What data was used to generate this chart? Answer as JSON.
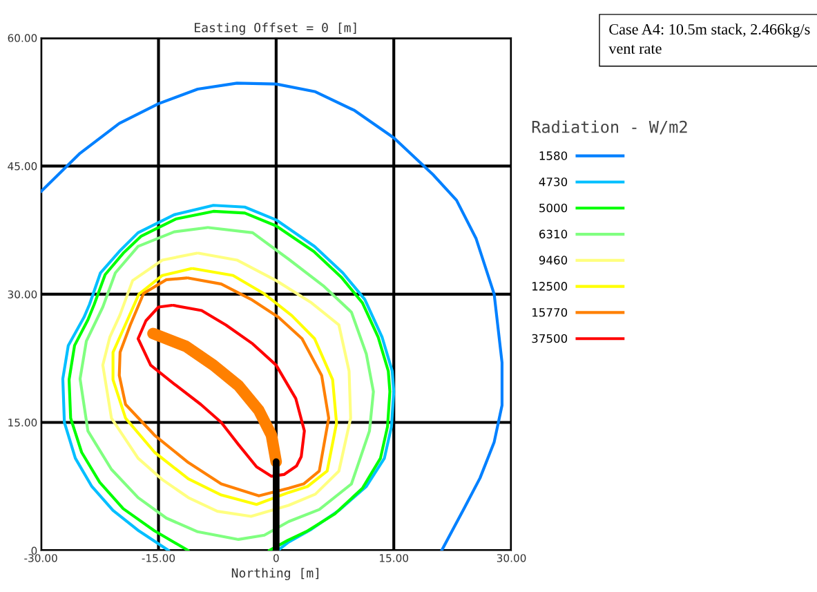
{
  "chart_data": {
    "type": "line",
    "title": "Easting Offset = 0 [m]",
    "xlabel": "Northing [m]",
    "legend_title": "Radiation - W/m2",
    "annotations": [
      "Case A4: 10.5m stack, 2.466kg/s vent rate"
    ],
    "xlim": [
      -30,
      30
    ],
    "ylim": [
      0,
      60
    ],
    "xticks": [
      {
        "value": -30,
        "label": "-30.00"
      },
      {
        "value": -15,
        "label": "-15.00"
      },
      0,
      {
        "value": 15,
        "label": "15.00"
      },
      {
        "value": 30,
        "label": "30.00"
      }
    ],
    "yticks": [
      0,
      {
        "value": 15,
        "label": "15.00"
      },
      {
        "value": 30,
        "label": "30.00"
      },
      {
        "value": 45,
        "label": "45.00"
      },
      {
        "value": 60,
        "label": "60.00"
      }
    ],
    "grid": true,
    "legend": "right",
    "marker": "none",
    "line_style": "solid",
    "series": [
      {
        "name": "1580",
        "color": "#0080ff",
        "x": [
          -30,
          -25,
          -20,
          -15,
          -10,
          -5,
          0,
          5,
          10,
          15,
          20,
          23,
          25.5,
          27.8,
          28.8,
          28.8,
          27.8,
          26,
          24,
          21.1
        ],
        "values": [
          42.0,
          46.5,
          50,
          52.3,
          54,
          54.7,
          54.6,
          53.7,
          51.5,
          48.3,
          44,
          41,
          36.5,
          30,
          22,
          17,
          12.7,
          8.5,
          5,
          0
        ]
      },
      {
        "name": "4730",
        "color": "#00bfff",
        "x": [
          -13.7,
          -17.5,
          -20.8,
          -23.5,
          -25.6,
          -27,
          -27.2,
          -26.5,
          -24.5,
          -23.8,
          -22.4,
          -20,
          -17.6,
          -13,
          -8,
          -4,
          0,
          4.9,
          8.5,
          11.3,
          13.5,
          14.8,
          15,
          14.7,
          13.8,
          11.5,
          8,
          4.5,
          1.6,
          0.2
        ],
        "values": [
          0,
          2.3,
          4.7,
          7.5,
          10.8,
          15,
          20.1,
          24,
          27.3,
          28.8,
          32.5,
          35,
          37.2,
          39.3,
          40.4,
          40.2,
          38.7,
          35.6,
          32.5,
          29.4,
          25,
          21,
          18.6,
          14.5,
          10.8,
          7.5,
          4.7,
          2.5,
          1,
          0
        ]
      },
      {
        "name": "5000",
        "color": "#00ff00",
        "x": [
          -11.2,
          -15.5,
          -19.5,
          -22.5,
          -24.8,
          -26.2,
          -26.4,
          -25.7,
          -24,
          -23.2,
          -21.8,
          -19.5,
          -17.2,
          -12.8,
          -8,
          -4,
          0,
          4.8,
          8.3,
          11,
          13,
          14.3,
          14.5,
          14.2,
          13.3,
          11,
          7.5,
          4,
          1.5,
          -0.9
        ],
        "values": [
          0,
          2.3,
          4.9,
          8,
          11.5,
          15.5,
          20,
          24,
          27,
          28.8,
          32.3,
          34.8,
          36.8,
          38.8,
          39.7,
          39.5,
          38,
          35,
          32,
          29,
          25,
          21,
          18.6,
          14.5,
          10.8,
          7.3,
          4.3,
          2.3,
          1.2,
          0
        ]
      },
      {
        "name": "6310",
        "color": "#80ff80",
        "x": [
          -8.6,
          -3,
          1.6,
          6,
          9.6,
          11.5,
          12.4,
          11.9,
          9.6,
          5.5,
          1.6,
          -1.5,
          -4.8,
          -10,
          -14,
          -17.6,
          -21,
          -24,
          -25,
          -24.2,
          -22.1,
          -20.5,
          -17.6,
          -13,
          -8.8
        ],
        "values": [
          37.8,
          37.2,
          34.1,
          31,
          27.9,
          23,
          18.6,
          14,
          7.8,
          4.8,
          3.4,
          1.8,
          1.3,
          2.2,
          3.8,
          6.2,
          9.5,
          14,
          20.1,
          24.5,
          28.5,
          32.5,
          35.6,
          37.3,
          37.8
        ]
      },
      {
        "name": "9460",
        "color": "#ffff80",
        "x": [
          -9.9,
          -5,
          0,
          4.5,
          8,
          9.3,
          9.5,
          8,
          5,
          1.6,
          -3.2,
          -7.5,
          -11.2,
          -14.5,
          -17.6,
          -21,
          -22.1,
          -21.2,
          -19.9,
          -18.3,
          -14.5,
          -10.1
        ],
        "values": [
          34.8,
          34,
          31.6,
          29,
          26.4,
          21,
          15.5,
          9.3,
          6.6,
          5.3,
          4.0,
          4.6,
          6.2,
          8.3,
          10.8,
          15.5,
          21.7,
          25,
          27.6,
          31.6,
          34,
          34.8
        ]
      },
      {
        "name": "12500",
        "color": "#ffff00",
        "x": [
          -10.6,
          -5.5,
          -1.6,
          2,
          4.9,
          7.2,
          7.7,
          6.5,
          4,
          1.6,
          -2.5,
          -7,
          -11.2,
          -15.5,
          -19.2,
          -20.8,
          -20.8,
          -19,
          -17.5,
          -14.5,
          -10.8
        ],
        "values": [
          33,
          32.2,
          30.1,
          27.5,
          24.8,
          20,
          14.9,
          9.3,
          7.5,
          6.8,
          5.4,
          6.5,
          8.4,
          11.5,
          15.5,
          20,
          23.2,
          26.9,
          30,
          32.2,
          33
        ]
      },
      {
        "name": "15770",
        "color": "#ff8000",
        "x": [
          -11.2,
          -7,
          -3.2,
          0.3,
          3.3,
          5.8,
          6.7,
          5.5,
          3.5,
          1.6,
          -2.2,
          -7,
          -11.2,
          -15.5,
          -19.2,
          -20,
          -19.9,
          -18.6,
          -16.9,
          -14,
          -11.4
        ],
        "values": [
          31.9,
          31.2,
          29.4,
          27.3,
          24.8,
          20.5,
          15.5,
          9.3,
          7.8,
          7.3,
          6.4,
          7.8,
          10.3,
          13.5,
          17.1,
          20.5,
          23.2,
          26.4,
          30.1,
          31.7,
          31.9
        ]
      },
      {
        "name": "37500",
        "color": "#ff0000",
        "x": [
          -13.1,
          -9.5,
          -6.4,
          -3,
          0,
          2.5,
          3.6,
          3.2,
          2.6,
          1,
          -0.6,
          -2.5,
          -4.8,
          -7,
          -9.6,
          -13,
          -16,
          -17.6,
          -16.6,
          -15,
          -13.3
        ],
        "values": [
          28.7,
          28.1,
          26.4,
          24.2,
          21.7,
          17.8,
          14,
          11,
          9.9,
          8.9,
          8.7,
          9.8,
          12.4,
          15,
          17.1,
          19.5,
          21.7,
          24.8,
          26.9,
          28.5,
          28.7
        ]
      },
      {
        "color": "#ff8000",
        "x": [
          -15.7,
          -11.5,
          -8,
          -4.8,
          -2.2,
          -0.6,
          0
        ],
        "values": [
          25.4,
          23.9,
          21.7,
          19.3,
          16.4,
          13.5,
          10.4
        ]
      },
      {
        "color": "#000000",
        "x": [
          0,
          0
        ],
        "values": [
          0,
          10.4
        ]
      }
    ]
  }
}
